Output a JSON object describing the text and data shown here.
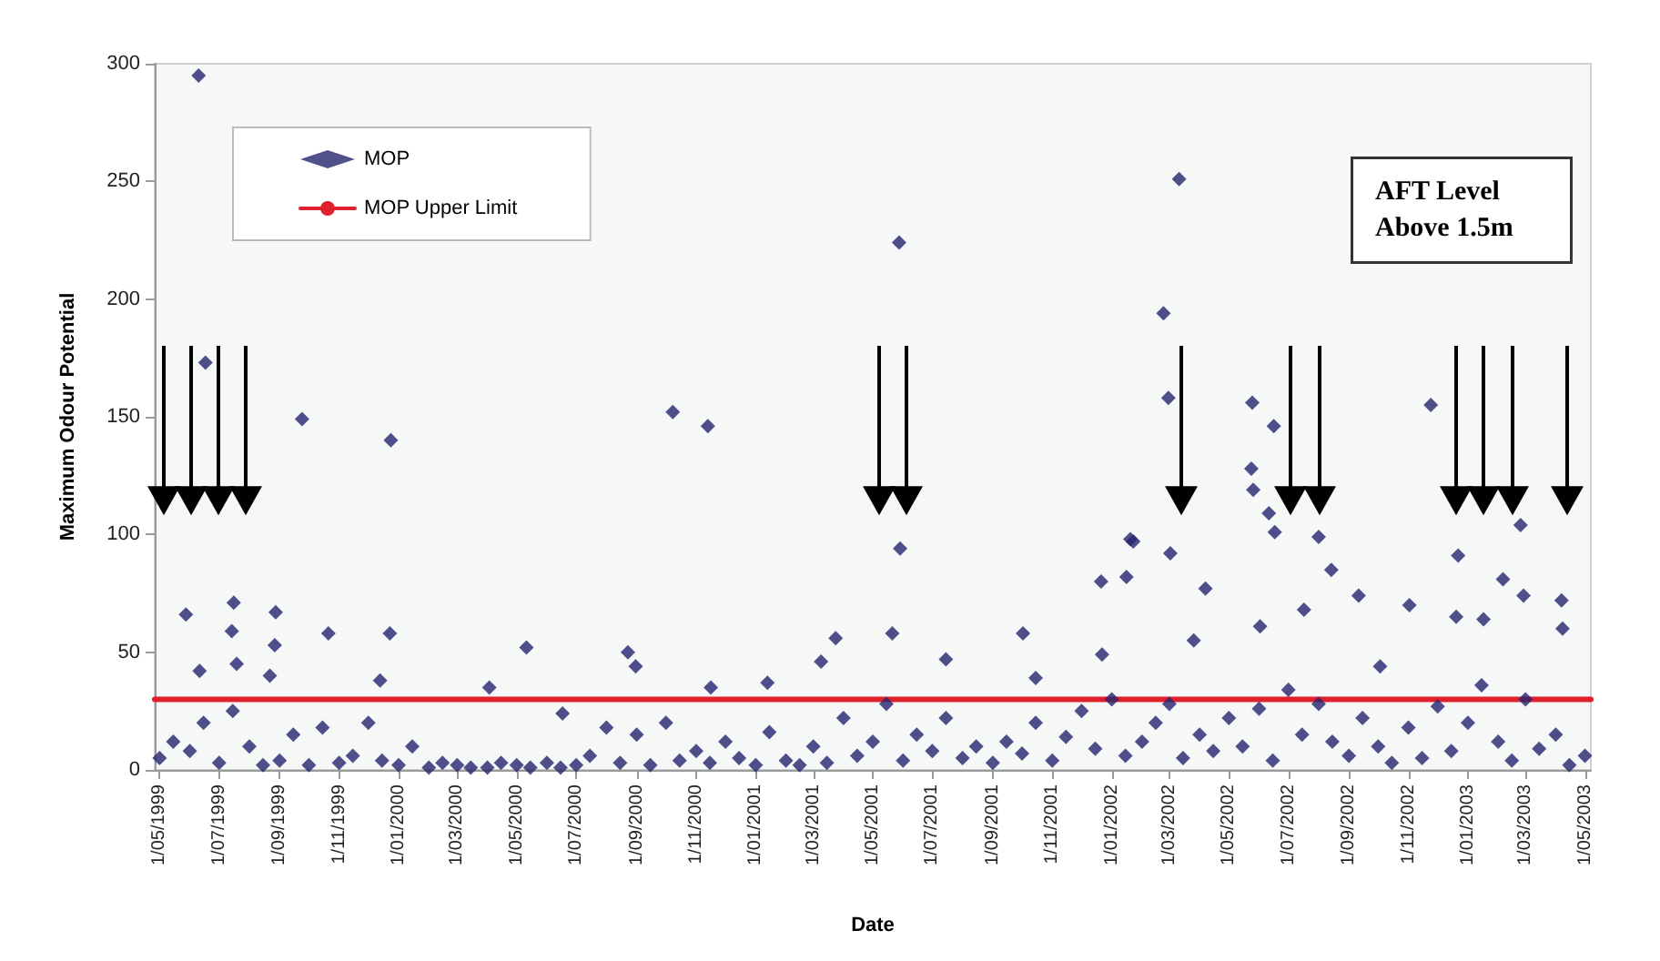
{
  "chart_data": {
    "type": "scatter",
    "xlabel": "Date",
    "ylabel": "Maximum Odour Potential",
    "annotations": [
      "AFT Level Above 1.5m"
    ],
    "xlim": [
      "1999-04-26",
      "2003-05-07"
    ],
    "ylim": [
      0,
      300
    ],
    "yticks": [
      0,
      50,
      100,
      150,
      200,
      250,
      300
    ],
    "xticks": [
      {
        "value": "1999-05-01",
        "label": "1/05/1999"
      },
      {
        "value": "1999-07-01",
        "label": "1/07/1999"
      },
      {
        "value": "1999-09-01",
        "label": "1/09/1999"
      },
      {
        "value": "1999-11-01",
        "label": "1/11/1999"
      },
      {
        "value": "2000-01-01",
        "label": "1/01/2000"
      },
      {
        "value": "2000-03-01",
        "label": "1/03/2000"
      },
      {
        "value": "2000-05-01",
        "label": "1/05/2000"
      },
      {
        "value": "2000-07-01",
        "label": "1/07/2000"
      },
      {
        "value": "2000-09-01",
        "label": "1/09/2000"
      },
      {
        "value": "2000-11-01",
        "label": "1/11/2000"
      },
      {
        "value": "2001-01-01",
        "label": "1/01/2001"
      },
      {
        "value": "2001-03-01",
        "label": "1/03/2001"
      },
      {
        "value": "2001-05-01",
        "label": "1/05/2001"
      },
      {
        "value": "2001-07-01",
        "label": "1/07/2001"
      },
      {
        "value": "2001-09-01",
        "label": "1/09/2001"
      },
      {
        "value": "2001-11-01",
        "label": "1/11/2001"
      },
      {
        "value": "2002-01-01",
        "label": "1/01/2002"
      },
      {
        "value": "2002-03-01",
        "label": "1/03/2002"
      },
      {
        "value": "2002-05-01",
        "label": "1/05/2002"
      },
      {
        "value": "2002-07-01",
        "label": "1/07/2002"
      },
      {
        "value": "2002-09-01",
        "label": "1/09/2002"
      },
      {
        "value": "2002-11-01",
        "label": "1/11/2002"
      },
      {
        "value": "2003-01-01",
        "label": "1/01/2003"
      },
      {
        "value": "2003-03-01",
        "label": "1/03/2003"
      },
      {
        "value": "2003-05-01",
        "label": "1/05/2003"
      }
    ],
    "grid": false,
    "legend": "top left",
    "series": [
      {
        "name": "MOP",
        "color": "#24246e",
        "marker": "diamond",
        "x": [
          "1999-06-10",
          "1999-06-17",
          "1999-09-24",
          "1999-12-24",
          "1999-05-28",
          "1999-07-16",
          "1999-07-14",
          "1999-08-28",
          "1999-08-27",
          "1999-10-21",
          "1999-12-23",
          "2000-05-11",
          "1999-06-11",
          "1999-07-19",
          "1999-08-22",
          "1999-12-13",
          "2000-04-03",
          "2000-08-23",
          "2000-08-31",
          "2000-06-17",
          "2001-05-28",
          "2000-10-08",
          "2000-11-13",
          "2001-05-29",
          "2001-03-24",
          "2001-05-21",
          "2001-10-02",
          "2001-07-15",
          "2001-03-09",
          "2001-12-21",
          "2002-01-20",
          "2002-01-16",
          "2001-12-22",
          "2001-01-13",
          "2000-11-16",
          "2001-10-15",
          "2002-03-11",
          "2002-02-23",
          "2002-02-28",
          "2002-05-25",
          "2002-06-16",
          "2002-05-24",
          "2002-05-26",
          "2002-06-11",
          "2002-06-17",
          "2002-08-01",
          "2002-11-24",
          "2003-02-24",
          "2002-12-22",
          "2002-01-23",
          "2002-03-02",
          "2002-04-07",
          "2002-08-14",
          "2002-09-11",
          "2002-11-02",
          "2003-02-06",
          "2003-04-07",
          "2003-04-08",
          "2003-02-27",
          "2002-06-02",
          "2002-07-17",
          "2002-10-03",
          "2002-03-26",
          "2002-12-20",
          "2003-01-17",
          "1999-05-01",
          "1999-05-15",
          "1999-06-01",
          "1999-06-15",
          "1999-07-01",
          "1999-07-15",
          "1999-08-01",
          "1999-08-15",
          "1999-09-01",
          "1999-09-15",
          "1999-10-01",
          "1999-10-15",
          "1999-11-01",
          "1999-11-15",
          "1999-12-01",
          "1999-12-15",
          "2000-01-01",
          "2000-01-15",
          "2000-02-01",
          "2000-02-15",
          "2000-03-01",
          "2000-03-15",
          "2000-04-01",
          "2000-04-15",
          "2000-05-01",
          "2000-05-15",
          "2000-06-01",
          "2000-06-15",
          "2000-07-01",
          "2000-07-15",
          "2000-08-01",
          "2000-08-15",
          "2000-09-01",
          "2000-09-15",
          "2000-10-01",
          "2000-10-15",
          "2000-11-01",
          "2000-11-15",
          "2000-12-01",
          "2000-12-15",
          "2001-01-01",
          "2001-01-15",
          "2001-02-01",
          "2001-02-15",
          "2001-03-01",
          "2001-03-15",
          "2001-04-01",
          "2001-04-15",
          "2001-05-01",
          "2001-05-15",
          "2001-06-01",
          "2001-06-15",
          "2001-07-01",
          "2001-07-15",
          "2001-08-01",
          "2001-08-15",
          "2001-09-01",
          "2001-09-15",
          "2001-10-01",
          "2001-10-15",
          "2001-11-01",
          "2001-11-15",
          "2001-12-01",
          "2001-12-15",
          "2002-01-01",
          "2002-01-15",
          "2002-02-01",
          "2002-02-15",
          "2002-03-01",
          "2002-03-15",
          "2002-04-01",
          "2002-04-15",
          "2002-05-01",
          "2002-05-15",
          "2002-06-01",
          "2002-06-15",
          "2002-07-01",
          "2002-07-15",
          "2002-08-01",
          "2002-08-15",
          "2002-09-01",
          "2002-09-15",
          "2002-10-01",
          "2002-10-15",
          "2002-11-01",
          "2002-11-15",
          "2002-12-01",
          "2002-12-15",
          "2003-01-01",
          "2003-01-15",
          "2003-02-01",
          "2003-02-15",
          "2003-03-01",
          "2003-03-15",
          "2003-04-01",
          "2003-04-15",
          "2003-05-01"
        ],
        "values": [
          295,
          173,
          149,
          140,
          66,
          71,
          59,
          67,
          53,
          58,
          58,
          52,
          42,
          45,
          40,
          38,
          35,
          50,
          44,
          24,
          224,
          152,
          146,
          94,
          56,
          58,
          58,
          47,
          46,
          80,
          98,
          82,
          49,
          37,
          35,
          39,
          251,
          194,
          158,
          156,
          146,
          128,
          119,
          109,
          101,
          99,
          155,
          104,
          91,
          97,
          92,
          77,
          85,
          74,
          70,
          81,
          72,
          60,
          74,
          61,
          68,
          44,
          55,
          65,
          64,
          5,
          12,
          8,
          20,
          3,
          25,
          10,
          2,
          4,
          15,
          2,
          18,
          3,
          6,
          20,
          4,
          2,
          10,
          1,
          3,
          2,
          1,
          1,
          3,
          2,
          1,
          3,
          1,
          2,
          6,
          18,
          3,
          15,
          2,
          20,
          4,
          8,
          3,
          12,
          5,
          2,
          16,
          4,
          2,
          10,
          3,
          22,
          6,
          12,
          28,
          4,
          15,
          8,
          22,
          5,
          10,
          3,
          12,
          7,
          20,
          4,
          14,
          25,
          9,
          30,
          6,
          12,
          20,
          28,
          5,
          15,
          8,
          22,
          10,
          26,
          4,
          34,
          15,
          28,
          12,
          6,
          22,
          10,
          3,
          18,
          5,
          27,
          8,
          20,
          36,
          12,
          4,
          30,
          9,
          15,
          2,
          6
        ]
      },
      {
        "name": "MOP Upper Limit",
        "type": "line",
        "color": "#e0202a",
        "marker": "none",
        "line_style": "solid",
        "x": [
          "1999-04-26",
          "2003-05-07"
        ],
        "values": [
          30,
          30
        ]
      }
    ],
    "ref_lines": [
      {
        "axis": "x",
        "value": "1999-05-06",
        "color": "#000000"
      },
      {
        "axis": "x",
        "value": "1999-06-03",
        "color": "#000000"
      },
      {
        "axis": "x",
        "value": "1999-07-01",
        "color": "#000000"
      },
      {
        "axis": "x",
        "value": "1999-07-29",
        "color": "#000000"
      },
      {
        "axis": "x",
        "value": "2001-05-07",
        "color": "#000000"
      },
      {
        "axis": "x",
        "value": "2001-06-04",
        "color": "#000000"
      },
      {
        "axis": "x",
        "value": "2002-03-13",
        "color": "#000000"
      },
      {
        "axis": "x",
        "value": "2002-07-04",
        "color": "#000000"
      },
      {
        "axis": "x",
        "value": "2002-08-02",
        "color": "#000000"
      },
      {
        "axis": "x",
        "value": "2002-12-20",
        "color": "#000000"
      },
      {
        "axis": "x",
        "value": "2003-01-17",
        "color": "#000000"
      },
      {
        "axis": "x",
        "value": "2003-02-15",
        "color": "#000000"
      },
      {
        "axis": "x",
        "value": "2003-04-12",
        "color": "#000000"
      }
    ]
  }
}
